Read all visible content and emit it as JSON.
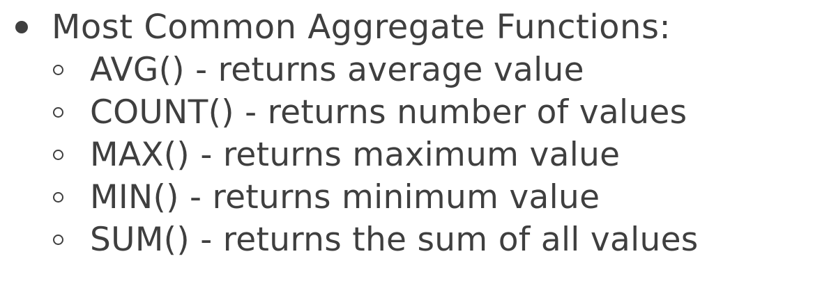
{
  "slide": {
    "heading": "Most Common Aggregate Functions:",
    "items": [
      {
        "text": "AVG() - returns average value"
      },
      {
        "text": "COUNT() - returns number of values"
      },
      {
        "text": "MAX() - returns maximum value"
      },
      {
        "text": "MIN() - returns minimum value"
      },
      {
        "text": "SUM() - returns the sum of all values"
      }
    ]
  }
}
